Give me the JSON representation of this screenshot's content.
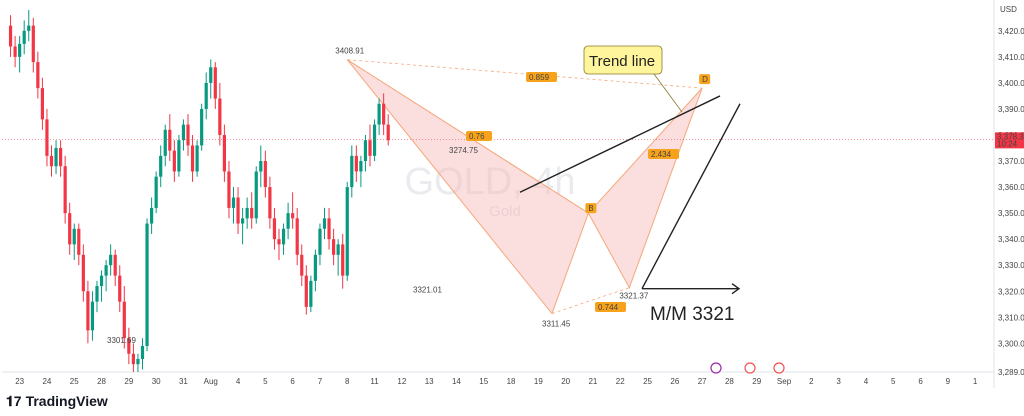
{
  "chart_data": {
    "type": "candlestick",
    "symbol_watermark": "GOLD, 4h",
    "watermark_sub": "Gold",
    "currency": "USD",
    "y_ticks": [
      "3,420.00",
      "3,410.00",
      "3,400.00",
      "3,390.00",
      "3,380.00",
      "3,370.00",
      "3,360.00",
      "3,350.00",
      "3,340.00",
      "3,330.00",
      "3,320.00",
      "3,310.00",
      "3,300.00",
      "3,289.00"
    ],
    "y_tick_values": [
      3420,
      3410,
      3400,
      3390,
      3380,
      3370,
      3360,
      3350,
      3340,
      3330,
      3320,
      3310,
      3300,
      3289
    ],
    "ylim": [
      3289,
      3428
    ],
    "x_ticks": [
      "23",
      "24",
      "25",
      "28",
      "29",
      "30",
      "31",
      "Aug",
      "4",
      "5",
      "6",
      "7",
      "8",
      "11",
      "12",
      "13",
      "14",
      "15",
      "18",
      "19",
      "20",
      "21",
      "22",
      "25",
      "26",
      "27",
      "28",
      "29",
      "Sep",
      "2",
      "3",
      "4",
      "5",
      "6",
      "9",
      "1"
    ],
    "x_tick_slots": [
      3,
      9,
      15,
      21,
      27,
      33,
      39,
      45,
      51,
      57,
      63,
      69,
      75,
      81,
      87,
      93,
      99,
      105,
      111,
      117,
      123,
      129,
      135,
      141,
      147,
      153,
      159,
      165,
      171,
      177,
      183,
      189,
      195,
      201,
      207,
      213
    ],
    "last_price": "3,378.32",
    "countdown": "10:24",
    "last_price_color": "#f23645",
    "bull_color": "#089981",
    "bear_color": "#f23645",
    "candles": [
      [
        3422,
        3426,
        3410,
        3414
      ],
      [
        3414,
        3418,
        3406,
        3410
      ],
      [
        3410,
        3418,
        3404,
        3415
      ],
      [
        3415,
        3424,
        3411,
        3420
      ],
      [
        3420,
        3428,
        3416,
        3422
      ],
      [
        3422,
        3425,
        3404,
        3408
      ],
      [
        3408,
        3412,
        3394,
        3398
      ],
      [
        3398,
        3402,
        3382,
        3386
      ],
      [
        3386,
        3390,
        3368,
        3372
      ],
      [
        3372,
        3376,
        3364,
        3368
      ],
      [
        3368,
        3378,
        3365,
        3375
      ],
      [
        3375,
        3378,
        3364,
        3368
      ],
      [
        3368,
        3372,
        3346,
        3350
      ],
      [
        3350,
        3354,
        3334,
        3338
      ],
      [
        3338,
        3346,
        3332,
        3344
      ],
      [
        3344,
        3346,
        3330,
        3334
      ],
      [
        3334,
        3338,
        3316,
        3320
      ],
      [
        3320,
        3324,
        3300,
        3305
      ],
      [
        3305,
        3320,
        3301,
        3316
      ],
      [
        3316,
        3324,
        3312,
        3322
      ],
      [
        3322,
        3328,
        3316,
        3326
      ],
      [
        3326,
        3332,
        3320,
        3330
      ],
      [
        3330,
        3338,
        3326,
        3334
      ],
      [
        3334,
        3336,
        3322,
        3326
      ],
      [
        3326,
        3330,
        3312,
        3316
      ],
      [
        3316,
        3322,
        3298,
        3302
      ],
      [
        3302,
        3306,
        3292,
        3296
      ],
      [
        3296,
        3300,
        3289,
        3292
      ],
      [
        3292,
        3296,
        3289,
        3294
      ],
      [
        3294,
        3302,
        3290,
        3299
      ],
      [
        3299,
        3348,
        3297,
        3346
      ],
      [
        3346,
        3356,
        3342,
        3352
      ],
      [
        3352,
        3366,
        3350,
        3364
      ],
      [
        3364,
        3376,
        3360,
        3372
      ],
      [
        3372,
        3384,
        3368,
        3382
      ],
      [
        3382,
        3388,
        3370,
        3374
      ],
      [
        3374,
        3378,
        3362,
        3366
      ],
      [
        3366,
        3380,
        3364,
        3378
      ],
      [
        3378,
        3386,
        3374,
        3384
      ],
      [
        3384,
        3388,
        3372,
        3376
      ],
      [
        3376,
        3380,
        3362,
        3366
      ],
      [
        3366,
        3378,
        3364,
        3376
      ],
      [
        3376,
        3392,
        3374,
        3390
      ],
      [
        3390,
        3404,
        3386,
        3400
      ],
      [
        3400,
        3409,
        3394,
        3406
      ],
      [
        3406,
        3408,
        3390,
        3394
      ],
      [
        3394,
        3400,
        3376,
        3380
      ],
      [
        3380,
        3384,
        3362,
        3366
      ],
      [
        3366,
        3370,
        3348,
        3352
      ],
      [
        3352,
        3360,
        3346,
        3356
      ],
      [
        3356,
        3360,
        3342,
        3346
      ],
      [
        3346,
        3352,
        3338,
        3348
      ],
      [
        3348,
        3356,
        3344,
        3352
      ],
      [
        3352,
        3358,
        3344,
        3348
      ],
      [
        3348,
        3368,
        3346,
        3366
      ],
      [
        3366,
        3376,
        3360,
        3370
      ],
      [
        3370,
        3374,
        3356,
        3360
      ],
      [
        3360,
        3364,
        3344,
        3348
      ],
      [
        3348,
        3352,
        3336,
        3340
      ],
      [
        3340,
        3344,
        3332,
        3338
      ],
      [
        3338,
        3346,
        3334,
        3344
      ],
      [
        3344,
        3354,
        3340,
        3350
      ],
      [
        3350,
        3358,
        3344,
        3348
      ],
      [
        3348,
        3352,
        3330,
        3334
      ],
      [
        3334,
        3338,
        3322,
        3326
      ],
      [
        3326,
        3330,
        3311,
        3314
      ],
      [
        3314,
        3326,
        3312,
        3324
      ],
      [
        3324,
        3336,
        3320,
        3334
      ],
      [
        3334,
        3346,
        3330,
        3344
      ],
      [
        3344,
        3352,
        3340,
        3348
      ],
      [
        3348,
        3352,
        3336,
        3340
      ],
      [
        3340,
        3344,
        3330,
        3334
      ],
      [
        3334,
        3340,
        3326,
        3338
      ],
      [
        3338,
        3342,
        3321,
        3326
      ],
      [
        3326,
        3362,
        3324,
        3360
      ],
      [
        3360,
        3376,
        3356,
        3372
      ],
      [
        3372,
        3376,
        3362,
        3366
      ],
      [
        3366,
        3372,
        3360,
        3370
      ],
      [
        3370,
        3380,
        3366,
        3378
      ],
      [
        3378,
        3384,
        3368,
        3372
      ],
      [
        3372,
        3386,
        3370,
        3384
      ],
      [
        3384,
        3394,
        3380,
        3392
      ],
      [
        3392,
        3396,
        3380,
        3384
      ],
      [
        3384,
        3388,
        3376,
        3378
      ]
    ],
    "pattern_points": {
      "X": [
        75,
        3408.91
      ],
      "A": [
        120,
        3311.45
      ],
      "B": [
        128,
        3350
      ],
      "C": [
        137,
        3321.37
      ],
      "D": [
        153,
        3398
      ]
    },
    "labels": {
      "x_point": "3408.91",
      "c_point": "3321.37",
      "a_point": "3311.45",
      "low_aug": "3301.69",
      "mid_low": "3321.01",
      "mid_high": "3274.75",
      "ratio_xd": "0.859",
      "ratio_ab": "0.744",
      "ratio_bc": "2.434",
      "ratio_mid": "0.76",
      "b_tag": "B",
      "d_tag": "D"
    },
    "annotations": {
      "trend_line": "Trend line",
      "mm": "M/M 3321"
    },
    "footer_brand": "TradingView"
  }
}
